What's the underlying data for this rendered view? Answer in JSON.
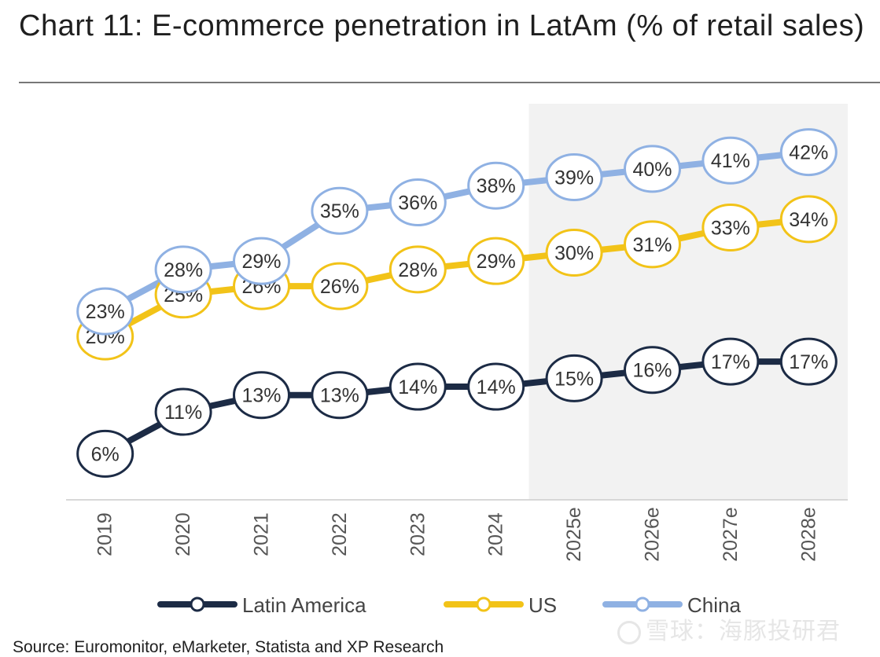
{
  "header": {
    "title": "Chart 11: E-commerce penetration in LatAm (% of retail sales)"
  },
  "footer": {
    "source": "Source: Euromonitor, eMarketer, Statista and XP Research"
  },
  "watermark": {
    "text": "雪球：海豚投研君",
    "icon": "snowball-logo-icon"
  },
  "chart_data": {
    "type": "line",
    "categories": [
      "2019",
      "2020",
      "2021",
      "2022",
      "2023",
      "2024",
      "2025e",
      "2026e",
      "2027e",
      "2028e"
    ],
    "forecast_from": "2025e",
    "ylim": [
      0,
      45
    ],
    "unit": "%",
    "grid": false,
    "legend_position": "bottom",
    "series": [
      {
        "name": "Latin America",
        "color": "#1c2b45",
        "values": [
          6,
          11,
          13,
          13,
          14,
          14,
          15,
          16,
          17,
          17
        ],
        "labels": [
          "6%",
          "11%",
          "13%",
          "13%",
          "14%",
          "14%",
          "15%",
          "16%",
          "17%",
          "17%"
        ]
      },
      {
        "name": "US",
        "color": "#f2c318",
        "values": [
          20,
          25,
          26,
          26,
          28,
          29,
          30,
          31,
          33,
          34
        ],
        "labels": [
          "20%",
          "25%",
          "26%",
          "26%",
          "28%",
          "29%",
          "30%",
          "31%",
          "33%",
          "34%"
        ]
      },
      {
        "name": "China",
        "color": "#8fb1e3",
        "values": [
          23,
          28,
          29,
          35,
          36,
          38,
          39,
          40,
          41,
          42
        ],
        "labels": [
          "23%",
          "28%",
          "29%",
          "35%",
          "36%",
          "38%",
          "39%",
          "40%",
          "41%",
          "42%"
        ]
      }
    ],
    "colors": {
      "forecast_band": "#f2f2f2",
      "axis": "#cccccc",
      "tick_text": "#555555"
    }
  }
}
